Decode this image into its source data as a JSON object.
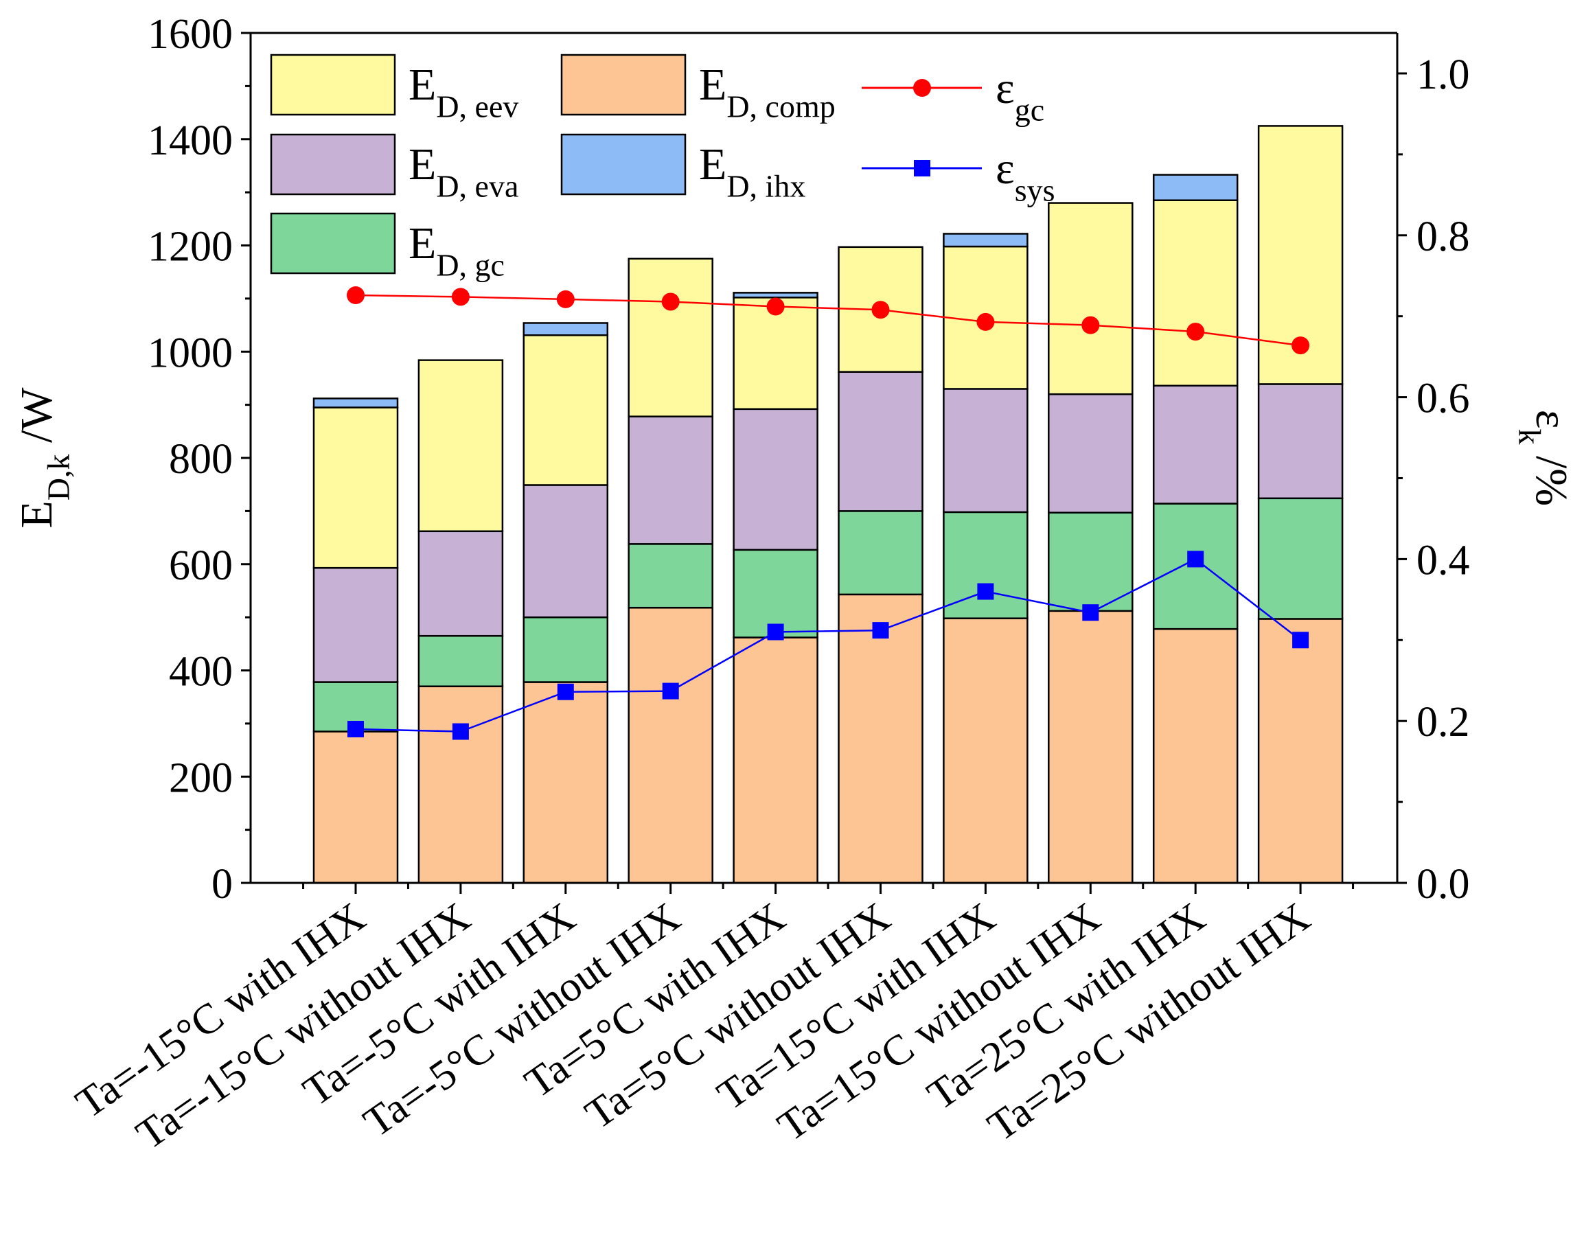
{
  "chart_data": {
    "type": "bar",
    "stacked": true,
    "title": "",
    "xlabel": "",
    "ylabel": {
      "main": "E",
      "sub": "D,k",
      "suffix": " /W"
    },
    "y2label": {
      "main": "ε",
      "sub": "k",
      "suffix": " /%"
    },
    "ylim": [
      0,
      1600
    ],
    "y2lim": [
      0,
      1.05
    ],
    "yticks": [
      0,
      200,
      400,
      600,
      800,
      1000,
      1200,
      1400,
      1600
    ],
    "y2ticks": [
      0.0,
      0.2,
      0.4,
      0.6,
      0.8,
      1.0
    ],
    "ytick_labels": [
      "0",
      "200",
      "400",
      "600",
      "800",
      "1000",
      "1200",
      "1400",
      "1600"
    ],
    "y2tick_labels": [
      "0.0",
      "0.2",
      "0.4",
      "0.6",
      "0.8",
      "1.0"
    ],
    "categories": [
      "Ta=-15°C with IHX",
      "Ta=-15°C without IHX",
      "Ta=-5°C with IHX",
      "Ta=-5°C without IHX",
      "Ta=5°C with IHX",
      "Ta=5°C without IHX",
      "Ta=15°C with IHX",
      "Ta=15°C without IHX",
      "Ta=25°C with IHX",
      "Ta=25°C without IHX"
    ],
    "series": [
      {
        "key": "comp",
        "main": "E",
        "sub": "D, comp",
        "color": "#FDC593",
        "values": [
          285,
          370,
          378,
          518,
          462,
          543,
          498,
          512,
          478,
          497
        ]
      },
      {
        "key": "gc",
        "main": "E",
        "sub": "D, gc",
        "color": "#7FD69A",
        "values": [
          93,
          95,
          122,
          120,
          165,
          157,
          200,
          185,
          236,
          227
        ]
      },
      {
        "key": "eva",
        "main": "E",
        "sub": "D, eva",
        "color": "#C7B2D6",
        "values": [
          215,
          197,
          249,
          240,
          265,
          262,
          232,
          223,
          222,
          215
        ]
      },
      {
        "key": "eev",
        "main": "E",
        "sub": "D, eev",
        "color": "#FFFAA0",
        "values": [
          302,
          322,
          282,
          297,
          210,
          235,
          268,
          360,
          349,
          486
        ]
      },
      {
        "key": "ihx",
        "main": "E",
        "sub": "D, ihx",
        "color": "#8DBBF5",
        "values": [
          17,
          0,
          23,
          0,
          9,
          0,
          24,
          0,
          48,
          0
        ]
      }
    ],
    "lines": [
      {
        "key": "egc",
        "main": "ε",
        "sub": "gc",
        "color": "#FF0000",
        "marker": "circle",
        "axis": "right",
        "values": [
          0.726,
          0.724,
          0.721,
          0.718,
          0.712,
          0.708,
          0.693,
          0.689,
          0.681,
          0.664
        ]
      },
      {
        "key": "esys",
        "main": "ε",
        "sub": "sys",
        "color": "#0000FF",
        "marker": "square",
        "axis": "right",
        "values": [
          0.19,
          0.187,
          0.236,
          0.237,
          0.31,
          0.312,
          0.36,
          0.334,
          0.4,
          0.3
        ]
      }
    ],
    "legend_position": "top-left"
  }
}
